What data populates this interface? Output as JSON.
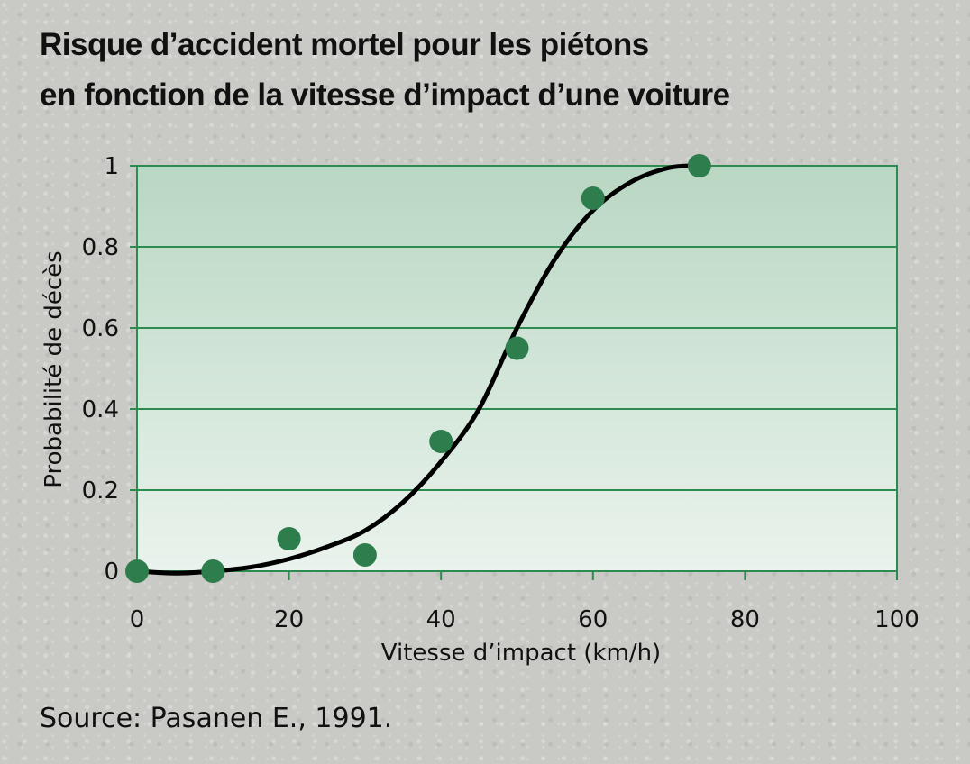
{
  "title_lines": [
    "Risque d’accident mortel pour les piétons",
    "en fonction de la vitesse d’impact d’une voiture"
  ],
  "source": "Source: Pasanen E., 1991.",
  "colors": {
    "plot_top": "#b9d7c3",
    "plot_bottom": "#eaf3ed",
    "grid": "#2e8b4f",
    "points": "#2e7d4c",
    "curve": "#000000"
  },
  "chart_data": {
    "type": "scatter",
    "title": "Risque d’accident mortel pour les piétons en fonction de la vitesse d’impact d’une voiture",
    "xlabel": "Vitesse d’impact (km/h)",
    "ylabel": "Probabilité de décès",
    "xlim": [
      0,
      100
    ],
    "ylim": [
      0,
      1
    ],
    "xticks": [
      0,
      20,
      40,
      60,
      80,
      100
    ],
    "yticks": [
      0,
      0.2,
      0.4,
      0.6,
      0.8,
      1
    ],
    "xtick_labels": [
      "0",
      "20",
      "40",
      "60",
      "80",
      "100"
    ],
    "ytick_labels": [
      "0",
      "0.2",
      "0.4",
      "0.6",
      "0.8",
      "1"
    ],
    "grid": "horizontal",
    "series": [
      {
        "type": "scatter",
        "x": [
          0,
          10,
          20,
          30,
          40,
          50,
          60,
          74
        ],
        "y": [
          0.0,
          0.0,
          0.08,
          0.04,
          0.32,
          0.55,
          0.92,
          1.0
        ]
      },
      {
        "type": "line",
        "x": [
          0,
          5,
          10,
          15,
          20,
          25,
          30,
          35,
          40,
          45,
          50,
          55,
          60,
          65,
          70,
          74
        ],
        "y": [
          0.0,
          -0.005,
          0.0,
          0.01,
          0.03,
          0.06,
          0.1,
          0.17,
          0.27,
          0.4,
          0.6,
          0.77,
          0.89,
          0.96,
          0.995,
          1.0
        ]
      }
    ]
  }
}
